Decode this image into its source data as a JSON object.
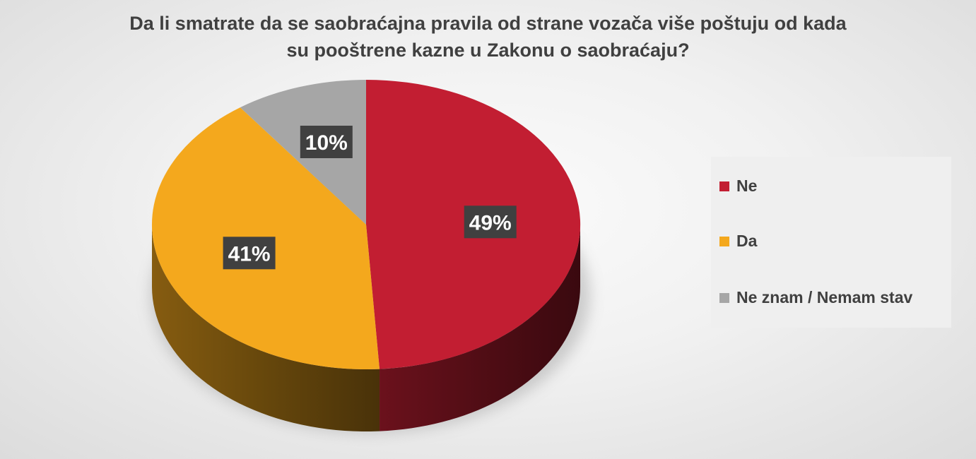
{
  "chart_data": {
    "type": "pie",
    "title_lines": [
      "Da li smatrate da se saobraćajna pravila od strane vozača više poštuju od kada",
      "su pooštrene kazne u Zakonu o saobraćaju?"
    ],
    "legend_position": "right",
    "slices": [
      {
        "name": "Ne",
        "value": 49,
        "label": "49%",
        "color": "#c21e32"
      },
      {
        "name": "Da",
        "value": 41,
        "label": "41%",
        "color": "#f4a81d"
      },
      {
        "name": "Ne znam / Nemam stav",
        "value": 10,
        "label": "10%",
        "color": "#a6a6a6"
      }
    ],
    "label_box_color": "#404040",
    "label_text_color": "#ffffff"
  }
}
